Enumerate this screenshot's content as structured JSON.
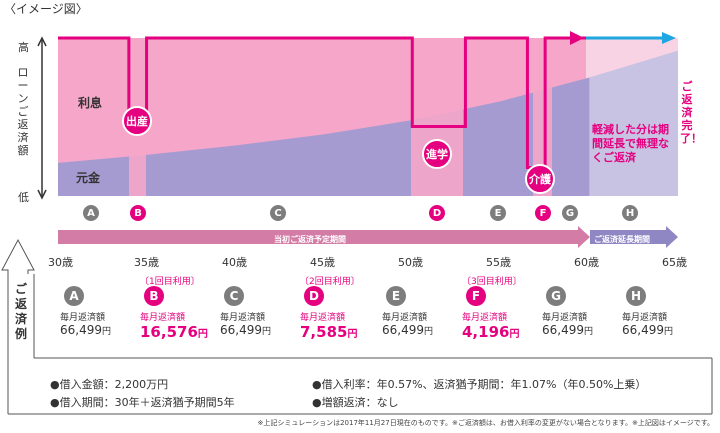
{
  "title": "〈イメージ図〉",
  "y_axis": {
    "high": "高",
    "low": "低",
    "label": "ローンご返済額"
  },
  "regions": {
    "interest": "利息",
    "principal": "元金"
  },
  "events": [
    {
      "id": "birth",
      "label": "出産"
    },
    {
      "id": "school",
      "label": "進学"
    },
    {
      "id": "care",
      "label": "介護"
    }
  ],
  "extend_note": "軽減した分は期間延長で無理なくご返済",
  "completion": "ご返済完了！",
  "phase_letters": [
    {
      "letter": "A",
      "color": "grey"
    },
    {
      "letter": "B",
      "color": "pink"
    },
    {
      "letter": "C",
      "color": "grey"
    },
    {
      "letter": "D",
      "color": "pink"
    },
    {
      "letter": "E",
      "color": "grey"
    },
    {
      "letter": "F",
      "color": "pink"
    },
    {
      "letter": "G",
      "color": "grey"
    },
    {
      "letter": "H",
      "color": "grey"
    }
  ],
  "period_bars": {
    "original": "当初ご返済予定期間",
    "extended": "ご返済延長期間"
  },
  "ages": [
    "30歳",
    "35歳",
    "40歳",
    "45歳",
    "50歳",
    "55歳",
    "60歳",
    "65歳"
  ],
  "side_label": "ご返済例",
  "payments": [
    {
      "letter": "A",
      "usage": "",
      "title": "毎月返済額",
      "amount": "66,499",
      "unit": "円",
      "highlight": false
    },
    {
      "letter": "B",
      "usage": "〔1回目利用〕",
      "title": "毎月返済額",
      "amount": "16,576",
      "unit": "円",
      "highlight": true
    },
    {
      "letter": "C",
      "usage": "",
      "title": "毎月返済額",
      "amount": "66,499",
      "unit": "円",
      "highlight": false
    },
    {
      "letter": "D",
      "usage": "〔2回目利用〕",
      "title": "毎月返済額",
      "amount": "7,585",
      "unit": "円",
      "highlight": true
    },
    {
      "letter": "E",
      "usage": "",
      "title": "毎月返済額",
      "amount": "66,499",
      "unit": "円",
      "highlight": false
    },
    {
      "letter": "F",
      "usage": "〔3回目利用〕",
      "title": "毎月返済額",
      "amount": "4,196",
      "unit": "円",
      "highlight": true
    },
    {
      "letter": "G",
      "usage": "",
      "title": "毎月返済額",
      "amount": "66,499",
      "unit": "円",
      "highlight": false
    },
    {
      "letter": "H",
      "usage": "",
      "title": "毎月返済額",
      "amount": "66,499",
      "unit": "円",
      "highlight": false
    }
  ],
  "conditions": {
    "loan_amount": "●借入金額：2,200万円",
    "rate": "●借入利率：年0.57%、返済猶予期間：年1.07%（年0.50%上乗）",
    "period": "●借入期間：30年＋返済猶予期間5年",
    "prepay": "●増額返済：なし"
  },
  "footnote": "※上記シミュレーションは2017年11月27日現在のものです。※ご返済額は、お借入利率の変更がない場合となります。※上記図はイメージです。",
  "chart_data": {
    "type": "area",
    "title": "〈イメージ図〉",
    "xlabel": "",
    "ylabel": "ローンご返済額",
    "x_ticks": [
      "30歳",
      "35歳",
      "40歳",
      "45歳",
      "50歳",
      "55歳",
      "60歳",
      "65歳"
    ],
    "xlim": [
      30,
      65
    ],
    "y_ticks": [
      "低",
      "高"
    ],
    "series": [
      {
        "name": "元金",
        "x": [
          30,
          35,
          40,
          45,
          50,
          55,
          60,
          65
        ],
        "values": [
          0.21,
          0.26,
          0.32,
          0.39,
          0.48,
          0.6,
          0.75,
          0.92
        ]
      },
      {
        "name": "利息",
        "x": [
          30,
          35,
          40,
          45,
          50,
          55,
          60,
          65
        ],
        "values": [
          0.79,
          0.74,
          0.68,
          0.61,
          0.52,
          0.4,
          0.25,
          0.08
        ]
      }
    ],
    "payment_line": {
      "x": [
        30,
        34,
        34,
        35,
        35,
        50,
        50,
        53,
        53,
        56.5,
        56.5,
        57.5,
        57.5,
        60
      ],
      "y": [
        1.0,
        1.0,
        0.46,
        0.46,
        1.0,
        1.0,
        0.44,
        0.44,
        1.0,
        1.0,
        0.18,
        0.18,
        1.0,
        1.0
      ]
    },
    "annotations": [
      "出産",
      "進学",
      "介護",
      "軽減した分は期間延長で無理なくご返済",
      "ご返済完了！"
    ]
  }
}
